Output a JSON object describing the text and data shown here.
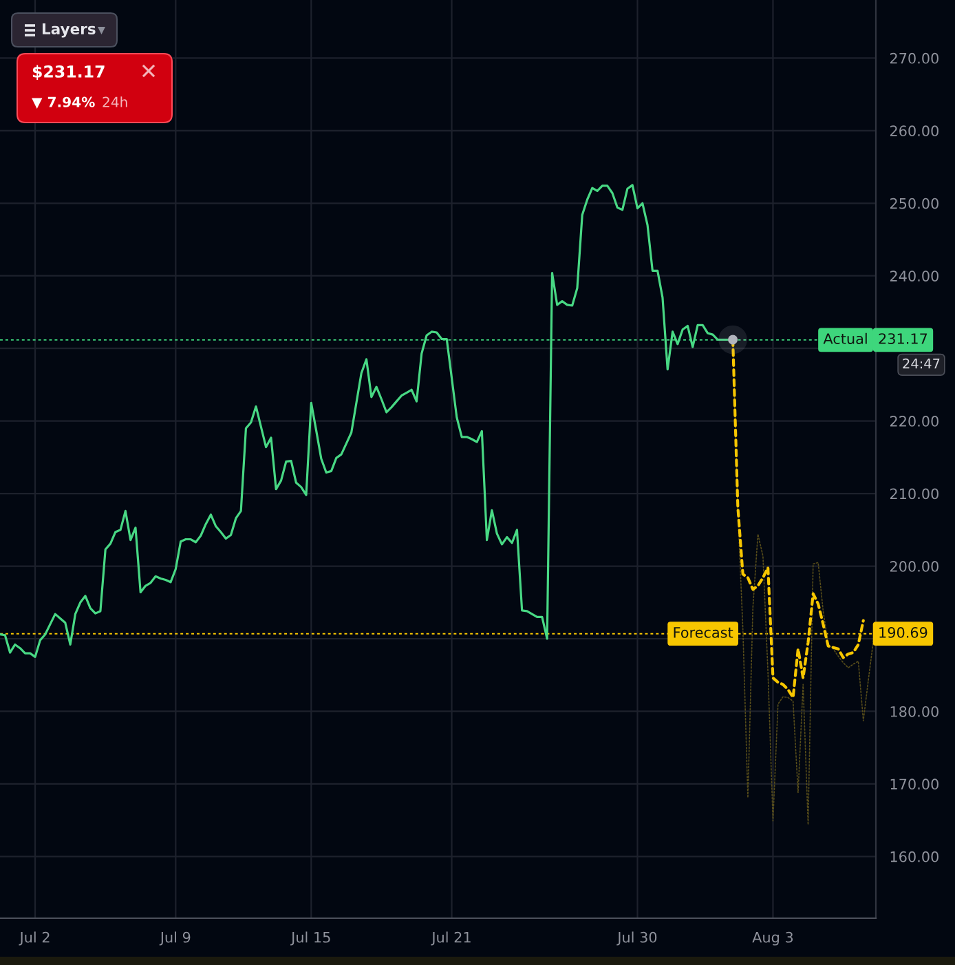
{
  "chart_data": {
    "type": "line",
    "categories": [
      null,
      null,
      null,
      null,
      null,
      null,
      null,
      "Jul 2",
      null,
      null,
      null,
      null,
      null,
      null,
      null,
      null,
      null,
      null,
      null,
      null,
      null,
      null,
      null,
      null,
      null,
      null,
      null,
      null,
      null,
      null,
      null,
      null,
      null,
      null,
      null,
      "Jul 9",
      null,
      null,
      null,
      null,
      null,
      null,
      null,
      null,
      null,
      null,
      null,
      null,
      null,
      null,
      null,
      null,
      null,
      null,
      null,
      null,
      null,
      null,
      null,
      null,
      null,
      null,
      "Jul 15",
      null,
      null,
      null,
      null,
      null,
      null,
      null,
      null,
      null,
      null,
      null,
      null,
      null,
      null,
      null,
      null,
      null,
      null,
      null,
      null,
      null,
      null,
      null,
      null,
      null,
      null,
      null,
      "Jul 21",
      null,
      null,
      null,
      null,
      null,
      null,
      null,
      null,
      null,
      null,
      null,
      null,
      null,
      null,
      null,
      null,
      null,
      null,
      null,
      null,
      null,
      null,
      null,
      null,
      null,
      null,
      null,
      null,
      null,
      null,
      null,
      null,
      null,
      null,
      null,
      null,
      "Jul 30",
      null,
      null,
      null,
      null,
      null,
      null,
      null,
      null,
      null,
      null,
      null,
      null,
      null,
      null,
      null,
      null,
      null,
      null,
      null,
      null,
      null,
      null,
      null,
      null,
      null,
      null,
      "Aug 3",
      null,
      null,
      null,
      null,
      null,
      null,
      null,
      null,
      null,
      null,
      null,
      null,
      null,
      null,
      null,
      null,
      null,
      null,
      null,
      null
    ],
    "ylim": [
      151.5,
      278
    ],
    "yticks": [
      {
        "value": 160,
        "label": "160.00"
      },
      {
        "value": 170,
        "label": "170.00"
      },
      {
        "value": 180,
        "label": "180.00"
      },
      {
        "value": 190,
        "label": null
      },
      {
        "value": 200,
        "label": "200.00"
      },
      {
        "value": 210,
        "label": "210.00"
      },
      {
        "value": 220,
        "label": "220.00"
      },
      {
        "value": 230,
        "label": null
      },
      {
        "value": 240,
        "label": "240.00"
      },
      {
        "value": 250,
        "label": "250.00"
      },
      {
        "value": 260,
        "label": "260.00"
      },
      {
        "value": 270,
        "label": "270.00"
      }
    ],
    "grid": true,
    "series": [
      {
        "color": "#48d884",
        "line_style": "solid",
        "values": [
          190.6,
          190.5,
          188.1,
          189.2,
          188.7,
          188.0,
          188.0,
          187.5,
          189.8,
          190.6,
          192.0,
          193.4,
          192.8,
          192.2,
          189.2,
          193.4,
          195.0,
          195.9,
          194.2,
          193.5,
          193.8,
          202.3,
          203.1,
          204.7,
          205.0,
          207.6,
          203.6,
          205.3,
          196.4,
          197.3,
          197.7,
          198.6,
          198.3,
          198.1,
          197.8,
          199.6,
          203.4,
          203.7,
          203.7,
          203.3,
          204.2,
          205.8,
          207.1,
          205.5,
          204.7,
          203.8,
          204.3,
          206.6,
          207.6,
          219.0,
          219.8,
          222.0,
          219.2,
          216.4,
          217.7,
          210.6,
          211.8,
          214.4,
          214.5,
          211.5,
          210.9,
          209.8,
          222.5,
          218.7,
          214.8,
          212.9,
          213.1,
          214.9,
          215.4,
          216.9,
          218.4,
          222.5,
          226.6,
          228.5,
          223.3,
          224.7,
          223.0,
          221.2,
          221.9,
          222.7,
          223.5,
          223.9,
          224.3,
          222.7,
          229.3,
          231.8,
          232.3,
          232.2,
          231.3,
          231.3,
          225.9,
          220.5,
          217.8,
          217.8,
          217.5,
          217.1,
          218.6,
          203.6,
          207.7,
          204.5,
          203.0,
          204.0,
          203.2,
          205.0,
          193.9,
          193.8,
          193.4,
          193.0,
          193.0,
          190.0,
          240.4,
          236.0,
          236.5,
          236.0,
          235.9,
          238.3,
          248.4,
          250.5,
          252.1,
          251.7,
          252.4,
          252.4,
          251.4,
          249.4,
          249.1,
          252.0,
          252.5,
          249.3,
          250.0,
          247.0,
          240.7,
          240.7,
          237.0,
          227.1,
          232.3,
          230.6,
          232.6,
          233.1,
          230.2,
          233.2,
          233.2,
          232.1,
          231.9,
          231.2,
          231.2,
          231.2,
          231.2,
          null,
          null,
          null,
          null,
          null,
          null,
          null,
          null,
          null,
          null,
          null,
          null,
          null,
          null,
          null,
          null,
          null,
          null,
          null,
          null,
          null,
          null,
          null,
          null,
          null,
          null,
          null,
          null
        ]
      },
      {
        "color": "#f7c600",
        "line_style": "dashed",
        "values": [
          null,
          null,
          null,
          null,
          null,
          null,
          null,
          null,
          null,
          null,
          null,
          null,
          null,
          null,
          null,
          null,
          null,
          null,
          null,
          null,
          null,
          null,
          null,
          null,
          null,
          null,
          null,
          null,
          null,
          null,
          null,
          null,
          null,
          null,
          null,
          null,
          null,
          null,
          null,
          null,
          null,
          null,
          null,
          null,
          null,
          null,
          null,
          null,
          null,
          null,
          null,
          null,
          null,
          null,
          null,
          null,
          null,
          null,
          null,
          null,
          null,
          null,
          null,
          null,
          null,
          null,
          null,
          null,
          null,
          null,
          null,
          null,
          null,
          null,
          null,
          null,
          null,
          null,
          null,
          null,
          null,
          null,
          null,
          null,
          null,
          null,
          null,
          null,
          null,
          null,
          null,
          null,
          null,
          null,
          null,
          null,
          null,
          null,
          null,
          null,
          null,
          null,
          null,
          null,
          null,
          null,
          null,
          null,
          null,
          null,
          null,
          null,
          null,
          null,
          null,
          null,
          null,
          null,
          null,
          null,
          null,
          null,
          null,
          null,
          null,
          null,
          null,
          null,
          null,
          null,
          null,
          null,
          null,
          null,
          null,
          null,
          null,
          null,
          null,
          null,
          null,
          null,
          null,
          null,
          null,
          null,
          231.2,
          208.1,
          198.9,
          198.4,
          196.8,
          197.3,
          198.4,
          199.8,
          184.6,
          184.0,
          183.7,
          183.0,
          181.9,
          188.6,
          184.6,
          189.5,
          196.2,
          194.8,
          192.0,
          189.0,
          188.8,
          188.6,
          187.4,
          187.9,
          188.1,
          189.2,
          192.5,
          null,
          null
        ]
      },
      {
        "color": "#564c1a",
        "line_style": "dotted",
        "values": [
          null,
          null,
          null,
          null,
          null,
          null,
          null,
          null,
          null,
          null,
          null,
          null,
          null,
          null,
          null,
          null,
          null,
          null,
          null,
          null,
          null,
          null,
          null,
          null,
          null,
          null,
          null,
          null,
          null,
          null,
          null,
          null,
          null,
          null,
          null,
          null,
          null,
          null,
          null,
          null,
          null,
          null,
          null,
          null,
          null,
          null,
          null,
          null,
          null,
          null,
          null,
          null,
          null,
          null,
          null,
          null,
          null,
          null,
          null,
          null,
          null,
          null,
          null,
          null,
          null,
          null,
          null,
          null,
          null,
          null,
          null,
          null,
          null,
          null,
          null,
          null,
          null,
          null,
          null,
          null,
          null,
          null,
          null,
          null,
          null,
          null,
          null,
          null,
          null,
          null,
          null,
          null,
          null,
          null,
          null,
          null,
          null,
          null,
          null,
          null,
          null,
          null,
          null,
          null,
          null,
          null,
          null,
          null,
          null,
          null,
          null,
          null,
          null,
          null,
          null,
          null,
          null,
          null,
          null,
          null,
          null,
          null,
          null,
          null,
          null,
          null,
          null,
          null,
          null,
          null,
          null,
          null,
          null,
          null,
          null,
          null,
          null,
          null,
          null,
          null,
          null,
          null,
          null,
          null,
          null,
          null,
          231.2,
          207.6,
          191.4,
          168.1,
          194.3,
          204.4,
          201.4,
          185.4,
          164.9,
          181.0,
          182.0,
          181.9,
          181.4,
          168.8,
          183.7,
          164.4,
          200.3,
          200.5,
          193.8,
          189.2,
          188.6,
          187.6,
          186.7,
          186.0,
          186.5,
          186.9,
          178.7,
          184.3,
          189.7
        ]
      },
      {
        "type": "scatter",
        "marker": "circle",
        "color": "#b2b5be",
        "values": [
          null,
          null,
          null,
          null,
          null,
          null,
          null,
          null,
          null,
          null,
          null,
          null,
          null,
          null,
          null,
          null,
          null,
          null,
          null,
          null,
          null,
          null,
          null,
          null,
          null,
          null,
          null,
          null,
          null,
          null,
          null,
          null,
          null,
          null,
          null,
          null,
          null,
          null,
          null,
          null,
          null,
          null,
          null,
          null,
          null,
          null,
          null,
          null,
          null,
          null,
          null,
          null,
          null,
          null,
          null,
          null,
          null,
          null,
          null,
          null,
          null,
          null,
          null,
          null,
          null,
          null,
          null,
          null,
          null,
          null,
          null,
          null,
          null,
          null,
          null,
          null,
          null,
          null,
          null,
          null,
          null,
          null,
          null,
          null,
          null,
          null,
          null,
          null,
          null,
          null,
          null,
          null,
          null,
          null,
          null,
          null,
          null,
          null,
          null,
          null,
          null,
          null,
          null,
          null,
          null,
          null,
          null,
          null,
          null,
          null,
          null,
          null,
          null,
          null,
          null,
          null,
          null,
          null,
          null,
          null,
          null,
          null,
          null,
          null,
          null,
          null,
          null,
          null,
          null,
          null,
          null,
          null,
          null,
          null,
          null,
          null,
          null,
          null,
          null,
          null,
          null,
          null,
          null,
          null,
          null,
          null,
          231.2,
          null,
          null,
          null,
          null,
          null,
          null,
          null,
          null,
          null,
          null,
          null,
          null,
          null,
          null,
          null,
          null,
          null,
          null,
          null,
          null,
          null,
          null,
          null,
          null,
          null,
          null,
          null,
          null
        ]
      }
    ],
    "ref_lines": [
      {
        "axis": "y",
        "value": 231.17,
        "label": "Actual",
        "color": "#3ed67c",
        "line_style": "dotted"
      },
      {
        "axis": "y",
        "value": 190.69,
        "label": "Forecast",
        "color": "#f7c600",
        "line_style": "dotted"
      }
    ],
    "annotations": [
      "Layers",
      "$231.17",
      "▼ 7.94%",
      "24h",
      "231.17",
      "24:47",
      "190.69"
    ]
  }
}
